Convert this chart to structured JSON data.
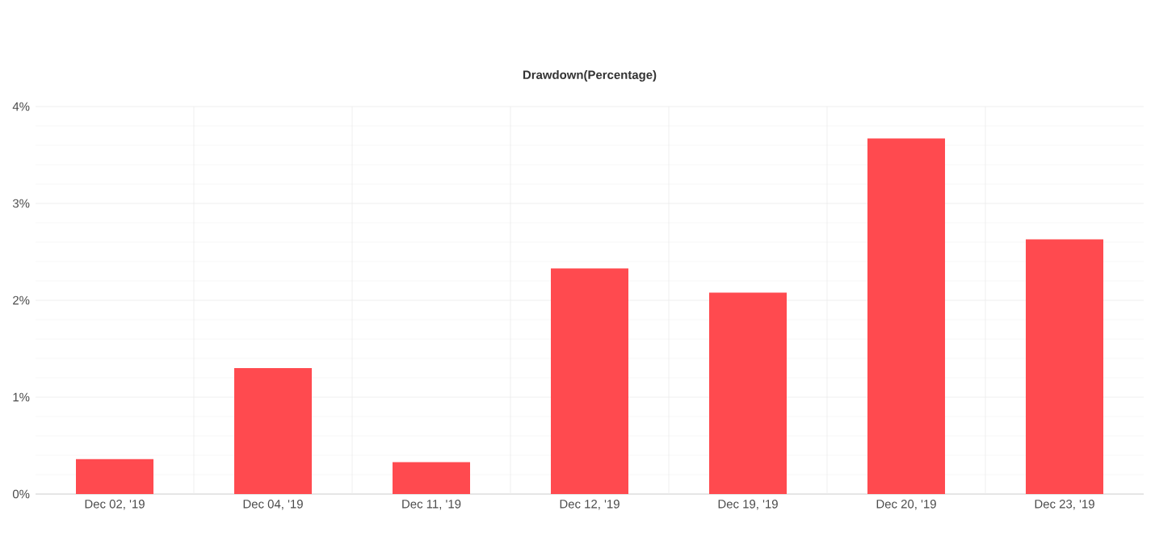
{
  "chart_data": {
    "type": "bar",
    "title": "Drawdown(Percentage)",
    "categories": [
      "Dec 02, '19",
      "Dec 04, '19",
      "Dec 11, '19",
      "Dec 12, '19",
      "Dec 19, '19",
      "Dec 20, '19",
      "Dec 23, '19"
    ],
    "values": [
      0.36,
      1.3,
      0.33,
      2.33,
      2.08,
      3.67,
      2.63
    ],
    "color": "#ff4a4f",
    "ylim": [
      0,
      4
    ],
    "yticks": [
      {
        "value": 0,
        "label": "0%"
      },
      {
        "value": 1,
        "label": "1%"
      },
      {
        "value": 2,
        "label": "2%"
      },
      {
        "value": 3,
        "label": "3%"
      },
      {
        "value": 4,
        "label": "4%"
      }
    ],
    "grid": true
  }
}
